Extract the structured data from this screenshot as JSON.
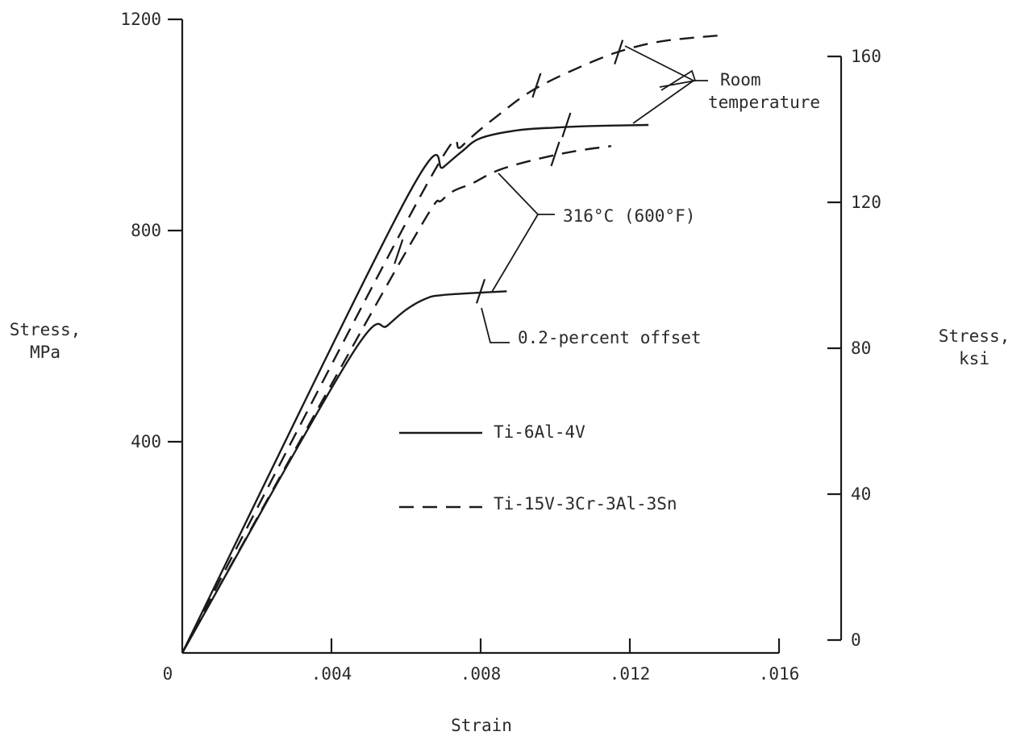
{
  "chart_data": {
    "type": "line",
    "xlabel": "Strain",
    "ylabel_left": "Stress,\nMPa",
    "ylabel_right": "Stress,\nksi",
    "xlim": [
      0,
      0.016
    ],
    "ylim_left": [
      0,
      1200
    ],
    "ylim_right": [
      0,
      160
    ],
    "x_ticks": [
      {
        "value": 0,
        "label": "0"
      },
      {
        "value": 0.004,
        "label": ".004"
      },
      {
        "value": 0.008,
        "label": ".008"
      },
      {
        "value": 0.012,
        "label": ".012"
      },
      {
        "value": 0.016,
        "label": ".016"
      }
    ],
    "y_ticks_left": [
      {
        "value": 400,
        "label": "400"
      },
      {
        "value": 800,
        "label": "800"
      },
      {
        "value": 1200,
        "label": "1200"
      }
    ],
    "y_ticks_right": [
      {
        "value": 0,
        "label": "0"
      },
      {
        "value": 40,
        "label": "40"
      },
      {
        "value": 80,
        "label": "80"
      },
      {
        "value": 120,
        "label": "120"
      },
      {
        "value": 160,
        "label": "160"
      }
    ],
    "series": [
      {
        "name": "Ti-6Al-4V",
        "style": "solid",
        "condition": "Room temperature",
        "points": [
          [
            0,
            0
          ],
          [
            0.006,
            860
          ],
          [
            0.007,
            920
          ],
          [
            0.0075,
            950
          ],
          [
            0.008,
            975
          ],
          [
            0.009,
            990
          ],
          [
            0.01,
            995
          ],
          [
            0.011,
            998
          ],
          [
            0.0125,
            1000
          ]
        ],
        "yield_marker": [
          0.0103,
          1000
        ]
      },
      {
        "name": "Ti-15V-3Cr-3Al-3Sn",
        "style": "dashed",
        "condition": "Room temperature",
        "points": [
          [
            0,
            0
          ],
          [
            0.0065,
            880
          ],
          [
            0.0075,
            960
          ],
          [
            0.0085,
            1020
          ],
          [
            0.0095,
            1070
          ],
          [
            0.011,
            1120
          ],
          [
            0.012,
            1145
          ],
          [
            0.013,
            1160
          ],
          [
            0.0145,
            1170
          ]
        ],
        "yield_markers": [
          [
            0.0095,
            1075
          ],
          [
            0.0117,
            1138
          ]
        ]
      },
      {
        "name": "Ti-6Al-4V",
        "style": "solid",
        "condition": "316°C (600°F)",
        "points": [
          [
            0,
            0
          ],
          [
            0.0045,
            560
          ],
          [
            0.0055,
            620
          ],
          [
            0.006,
            650
          ],
          [
            0.0065,
            670
          ],
          [
            0.007,
            678
          ],
          [
            0.0087,
            685
          ]
        ],
        "yield_marker": [
          0.008,
          685
        ]
      },
      {
        "name": "Ti-15V-3Cr-3Al-3Sn",
        "style": "dashed",
        "condition": "316°C (600°F)",
        "points": [
          [
            0,
            0
          ],
          [
            0.006,
            760
          ],
          [
            0.007,
            860
          ],
          [
            0.0078,
            890
          ],
          [
            0.0085,
            915
          ],
          [
            0.0095,
            935
          ],
          [
            0.0105,
            950
          ],
          [
            0.0115,
            960
          ]
        ],
        "yield_markers": [
          [
            0.0058,
            760
          ],
          [
            0.01,
            945
          ]
        ]
      }
    ],
    "annotations": {
      "room_temperature": [
        "Room",
        "temperature"
      ],
      "high_temperature": "316°C (600°F)",
      "offset": "0.2-percent offset"
    },
    "legend": [
      {
        "label": "Ti-6Al-4V",
        "style": "solid"
      },
      {
        "label": "Ti-15V-3Cr-3Al-3Sn",
        "style": "dashed"
      }
    ]
  }
}
